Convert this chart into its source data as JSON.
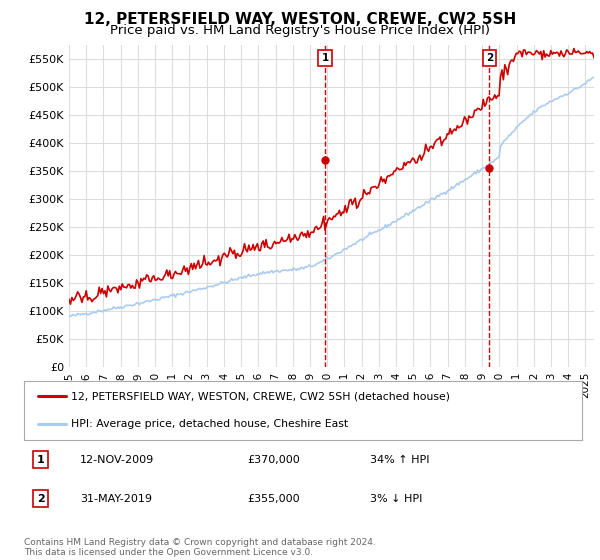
{
  "title": "12, PETERSFIELD WAY, WESTON, CREWE, CW2 5SH",
  "subtitle": "Price paid vs. HM Land Registry's House Price Index (HPI)",
  "ylabel_ticks": [
    "£0",
    "£50K",
    "£100K",
    "£150K",
    "£200K",
    "£250K",
    "£300K",
    "£350K",
    "£400K",
    "£450K",
    "£500K",
    "£550K"
  ],
  "ytick_vals": [
    0,
    50000,
    100000,
    150000,
    200000,
    250000,
    300000,
    350000,
    400000,
    450000,
    500000,
    550000
  ],
  "xlim": [
    1995.0,
    2025.5
  ],
  "ylim": [
    0,
    575000
  ],
  "line1_color": "#cc0000",
  "line2_color": "#aaccee",
  "marker1_date_x": 2009.87,
  "marker1_y": 370000,
  "marker2_date_x": 2019.42,
  "marker2_y": 355000,
  "legend_line1": "12, PETERSFIELD WAY, WESTON, CREWE, CW2 5SH (detached house)",
  "legend_line2": "HPI: Average price, detached house, Cheshire East",
  "annot1_label": "1",
  "annot1_date": "12-NOV-2009",
  "annot1_price": "£370,000",
  "annot1_hpi": "34% ↑ HPI",
  "annot2_label": "2",
  "annot2_date": "31-MAY-2019",
  "annot2_price": "£355,000",
  "annot2_hpi": "3% ↓ HPI",
  "footer": "Contains HM Land Registry data © Crown copyright and database right 2024.\nThis data is licensed under the Open Government Licence v3.0.",
  "background_color": "#ffffff",
  "grid_color": "#dddddd",
  "title_fontsize": 11,
  "subtitle_fontsize": 9.5
}
